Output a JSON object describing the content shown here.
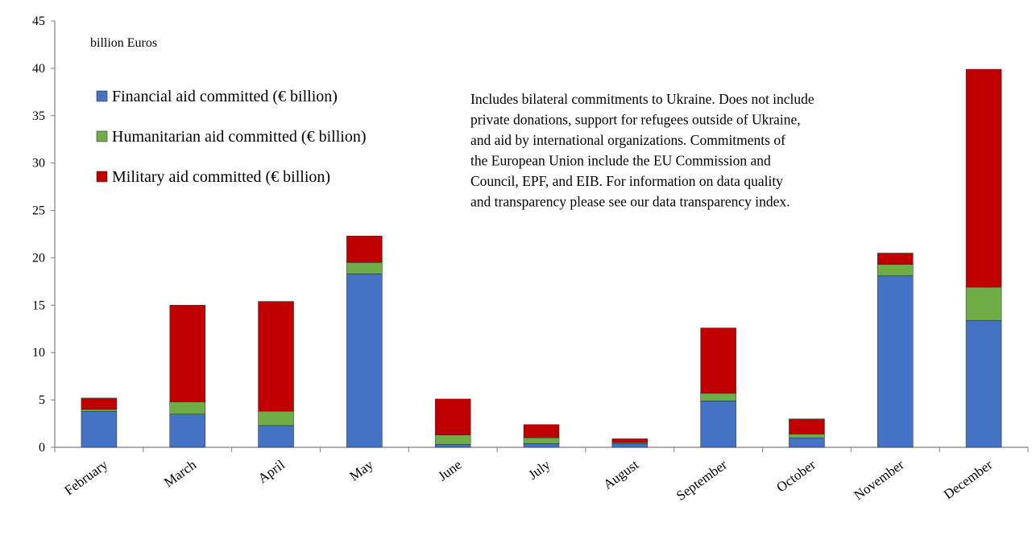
{
  "chart_data": {
    "type": "bar",
    "stacked": true,
    "unit_label": "billion Euros",
    "categories": [
      "February",
      "March",
      "April",
      "May",
      "June",
      "July",
      "August",
      "September",
      "October",
      "November",
      "December"
    ],
    "series": [
      {
        "name": "Financial aid committed (€ billion)",
        "color": "#4472C4",
        "values": [
          3.8,
          3.5,
          2.3,
          18.3,
          0.3,
          0.4,
          0.4,
          4.9,
          1.0,
          18.1,
          13.4
        ]
      },
      {
        "name": "Humanitarian aid committed (€ billion)",
        "color": "#70AD47",
        "values": [
          0.2,
          1.3,
          1.5,
          1.2,
          1.0,
          0.6,
          0.1,
          0.8,
          0.4,
          1.2,
          3.5
        ]
      },
      {
        "name": "Military aid committed (€ billion)",
        "color": "#C00000",
        "values": [
          1.2,
          10.2,
          11.6,
          2.8,
          3.8,
          1.4,
          0.4,
          6.9,
          1.6,
          1.2,
          23.0
        ]
      }
    ],
    "ylim": [
      0,
      45
    ],
    "yticks": [
      0,
      5,
      10,
      15,
      20,
      25,
      30,
      35,
      40,
      45
    ],
    "grid": false,
    "legend_position": "top-left",
    "note_lines": [
      "Includes bilateral commitments to Ukraine. Does not include",
      "private donations, support for refugees outside of Ukraine,",
      "and aid by international organizations. Commitments of",
      "the European Union include the EU Commission and",
      "Council, EPF, and EIB. For information on data quality",
      "and transparency please see our data transparency index."
    ]
  }
}
